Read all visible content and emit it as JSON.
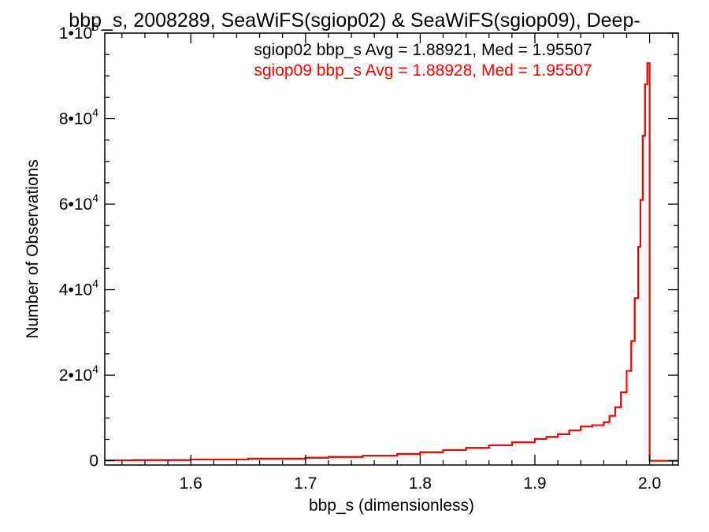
{
  "chart_data": {
    "type": "line",
    "title": "bbp_s, 2008289, SeaWiFS(sgiop02) & SeaWiFS(sgiop09), Deep-",
    "xlabel": "bbp_s (dimensionless)",
    "ylabel": "Number of Observations",
    "xlim": [
      1.525,
      2.025
    ],
    "ylim": [
      -1000,
      100000
    ],
    "x_ticks": [
      1.6,
      1.7,
      1.8,
      1.9,
      2.0
    ],
    "x_tick_labels": [
      "1.6",
      "1.7",
      "1.8",
      "1.9",
      "2.0"
    ],
    "y_ticks": [
      0,
      20000,
      40000,
      60000,
      80000,
      100000
    ],
    "y_tick_labels": [
      {
        "base": "0",
        "exp": ""
      },
      {
        "base": "2•10",
        "exp": "4"
      },
      {
        "base": "4•10",
        "exp": "4"
      },
      {
        "base": "6•10",
        "exp": "4"
      },
      {
        "base": "8•10",
        "exp": "4"
      },
      {
        "base": "1•10",
        "exp": "5"
      }
    ],
    "grid": false,
    "annotations": [
      {
        "text": "sgiop02 bbp_s Avg = 1.88921, Med = 1.95507",
        "color": "#000000"
      },
      {
        "text": "sgiop09 bbp_s Avg = 1.88928, Med = 1.95507",
        "color": "#ff0000"
      }
    ],
    "series": [
      {
        "name": "sgiop02",
        "color": "#000000",
        "x": [
          1.525,
          1.55,
          1.6,
          1.65,
          1.7,
          1.72,
          1.75,
          1.78,
          1.8,
          1.82,
          1.84,
          1.86,
          1.88,
          1.9,
          1.91,
          1.92,
          1.93,
          1.94,
          1.95,
          1.96,
          1.965,
          1.97,
          1.975,
          1.98,
          1.984,
          1.987,
          1.99,
          1.992,
          1.994,
          1.996,
          1.998,
          2.0
        ],
        "values": [
          100,
          150,
          300,
          500,
          700,
          900,
          1200,
          1600,
          2000,
          2500,
          3000,
          3600,
          4300,
          5100,
          5600,
          6200,
          7100,
          8000,
          8300,
          9000,
          10500,
          12500,
          16000,
          21000,
          28000,
          38000,
          50000,
          61000,
          76000,
          88000,
          93000,
          0
        ]
      },
      {
        "name": "sgiop09",
        "color": "#ff0000",
        "x": [
          1.525,
          1.55,
          1.6,
          1.65,
          1.7,
          1.72,
          1.75,
          1.78,
          1.8,
          1.82,
          1.84,
          1.86,
          1.88,
          1.9,
          1.91,
          1.92,
          1.93,
          1.94,
          1.95,
          1.96,
          1.965,
          1.97,
          1.975,
          1.98,
          1.984,
          1.987,
          1.99,
          1.992,
          1.994,
          1.996,
          1.998,
          2.0
        ],
        "values": [
          100,
          150,
          300,
          500,
          700,
          900,
          1200,
          1600,
          2000,
          2500,
          3000,
          3600,
          4300,
          5100,
          5600,
          6200,
          7100,
          8000,
          8300,
          9000,
          10500,
          12500,
          16000,
          21000,
          28000,
          38000,
          50000,
          61000,
          76000,
          88000,
          93000,
          0
        ]
      }
    ]
  }
}
